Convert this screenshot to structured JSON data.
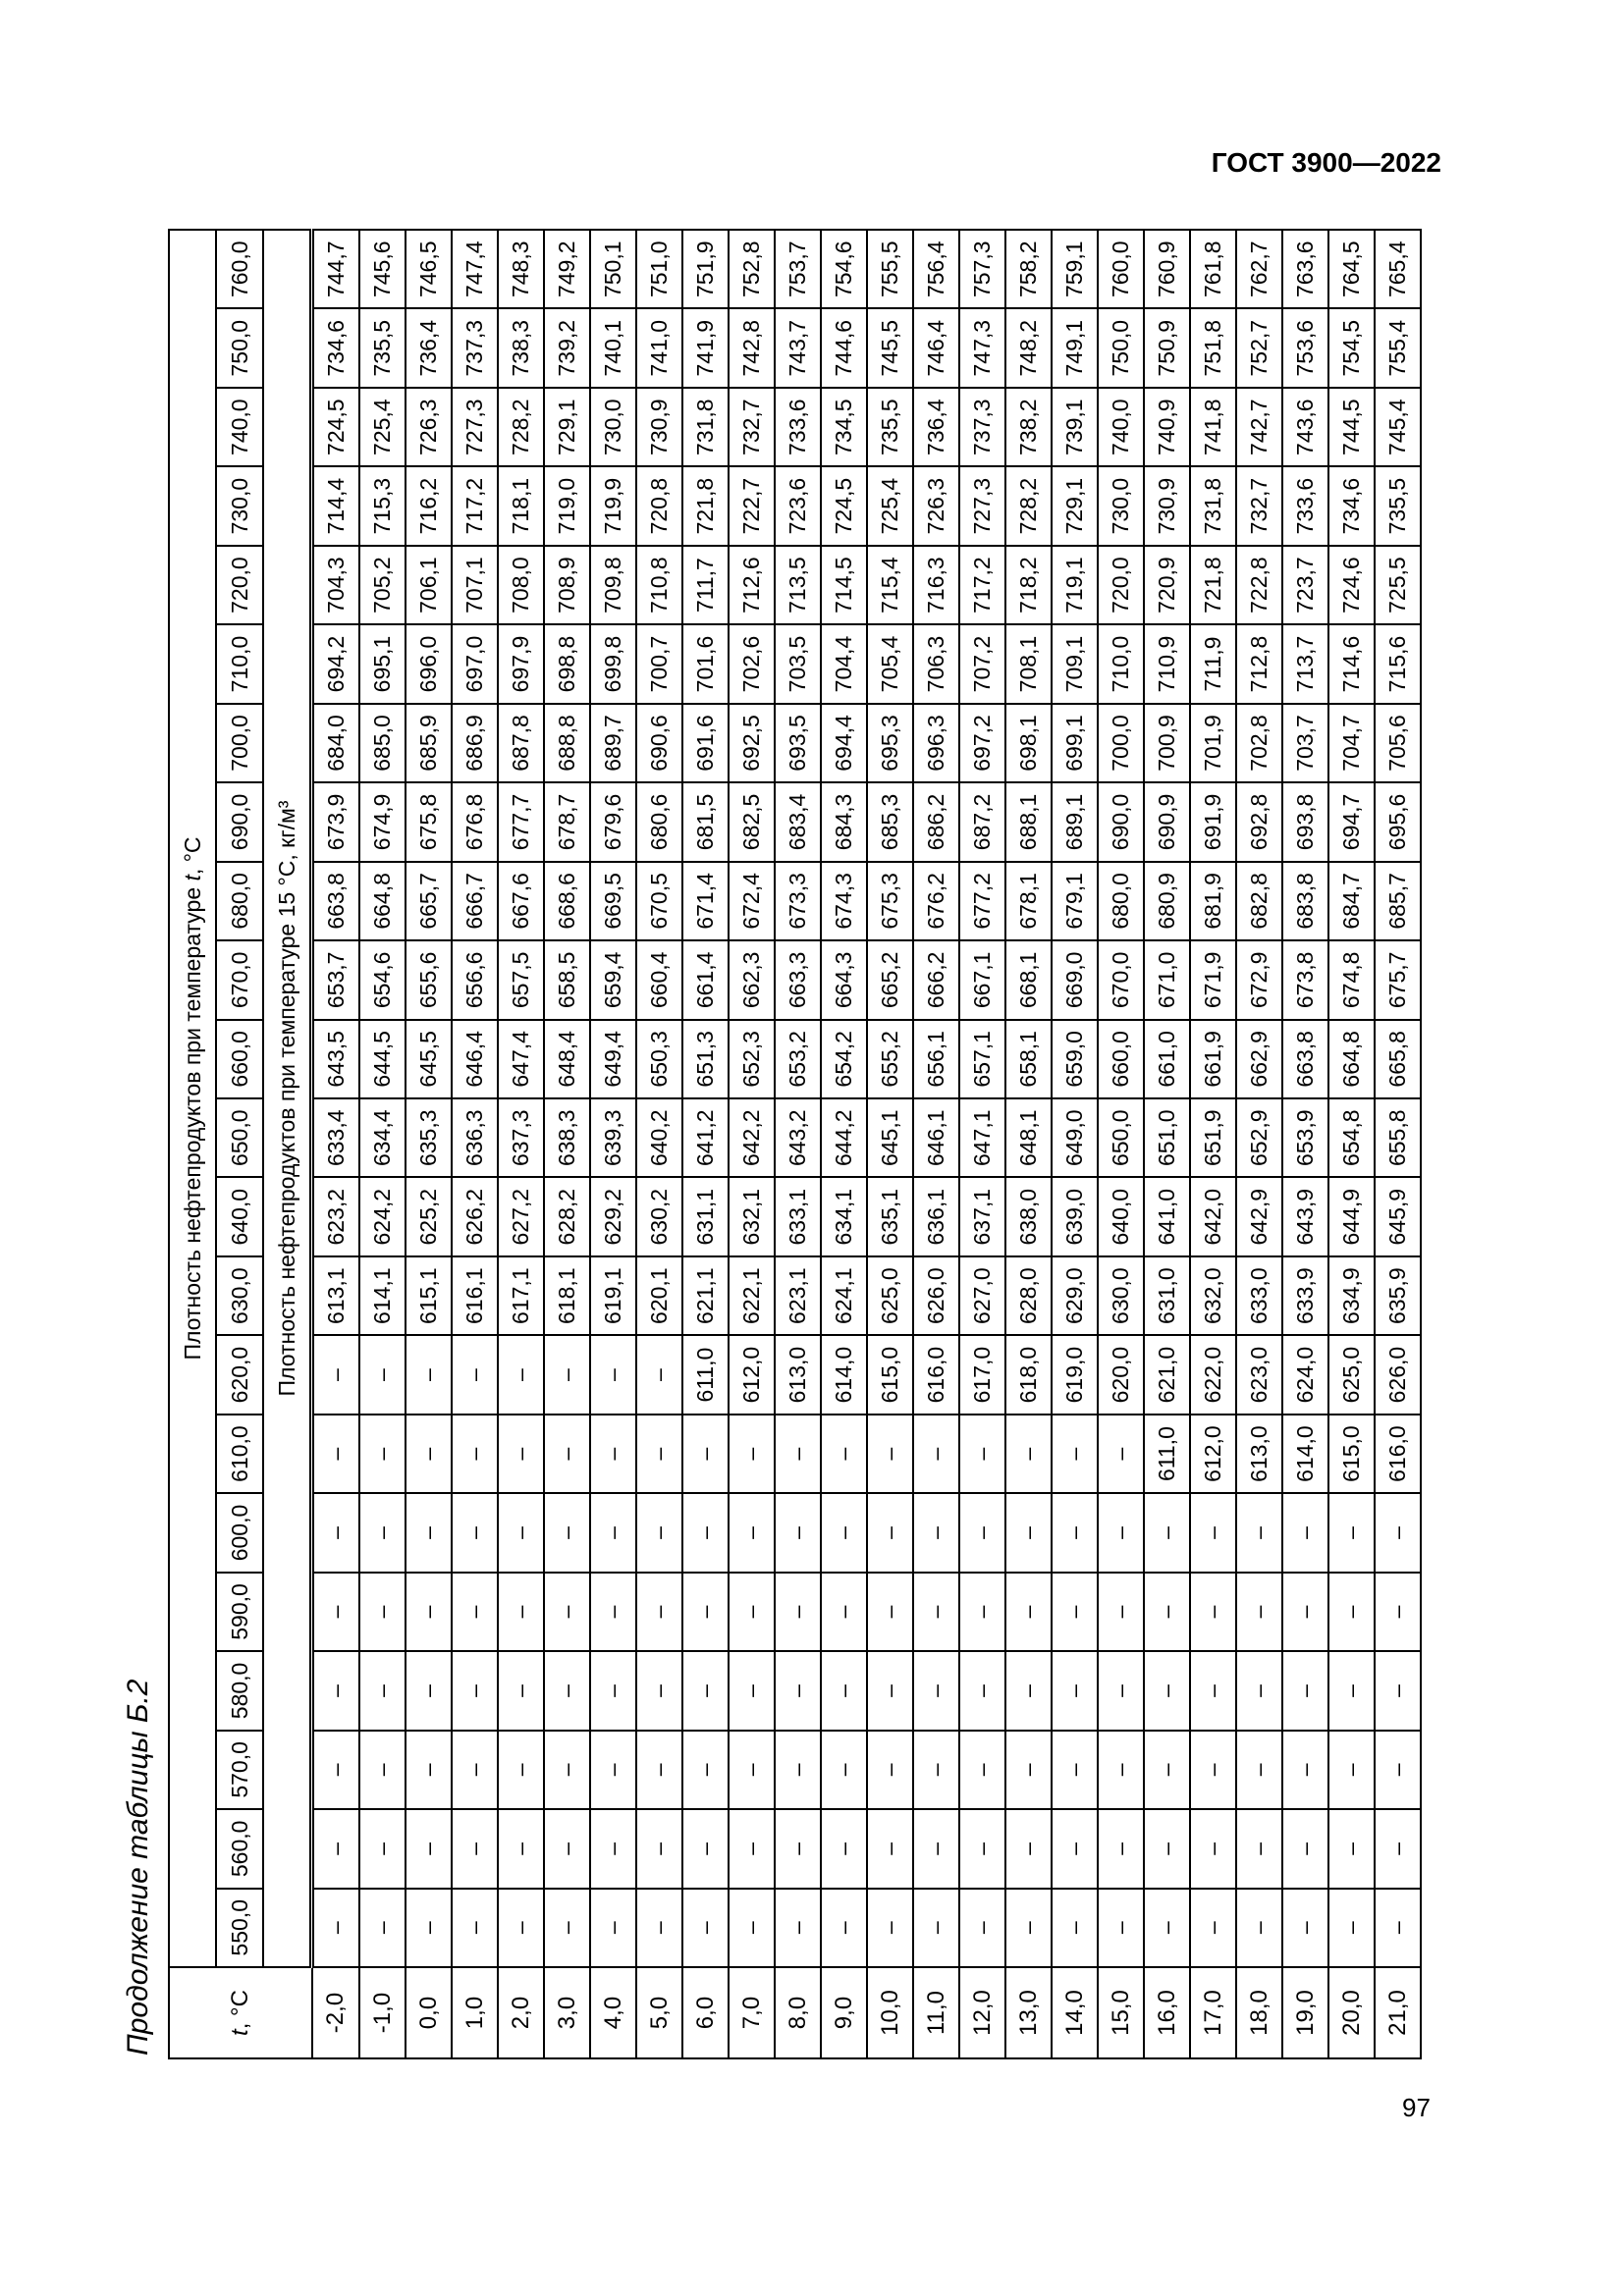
{
  "header": {
    "doc_id": "ГОСТ 3900—2022"
  },
  "footer": {
    "page_number": "97"
  },
  "table": {
    "caption": "Продолжение таблицы Б.2",
    "t_header": {
      "symbol": "t",
      "unit": ", °C"
    },
    "group_header": {
      "prefix": "Плотность нефтепродуктов при температуре ",
      "symbol": "t",
      "suffix": ", °C"
    },
    "sub_header": "Плотность нефтепродуктов при температуре 15 °C, кг/м³",
    "columns": [
      "550,0",
      "560,0",
      "570,0",
      "580,0",
      "590,0",
      "600,0",
      "610,0",
      "620,0",
      "630,0",
      "640,0",
      "650,0",
      "660,0",
      "670,0",
      "680,0",
      "690,0",
      "700,0",
      "710,0",
      "720,0",
      "730,0",
      "740,0",
      "750,0",
      "760,0"
    ],
    "rows": [
      {
        "t": "-2,0",
        "values": [
          "–",
          "–",
          "–",
          "–",
          "–",
          "–",
          "–",
          "–",
          "613,1",
          "623,2",
          "633,4",
          "643,5",
          "653,7",
          "663,8",
          "673,9",
          "684,0",
          "694,2",
          "704,3",
          "714,4",
          "724,5",
          "734,6",
          "744,7"
        ]
      },
      {
        "t": "-1,0",
        "values": [
          "–",
          "–",
          "–",
          "–",
          "–",
          "–",
          "–",
          "–",
          "614,1",
          "624,2",
          "634,4",
          "644,5",
          "654,6",
          "664,8",
          "674,9",
          "685,0",
          "695,1",
          "705,2",
          "715,3",
          "725,4",
          "735,5",
          "745,6"
        ]
      },
      {
        "t": "0,0",
        "values": [
          "–",
          "–",
          "–",
          "–",
          "–",
          "–",
          "–",
          "–",
          "615,1",
          "625,2",
          "635,3",
          "645,5",
          "655,6",
          "665,7",
          "675,8",
          "685,9",
          "696,0",
          "706,1",
          "716,2",
          "726,3",
          "736,4",
          "746,5"
        ]
      },
      {
        "t": "1,0",
        "values": [
          "–",
          "–",
          "–",
          "–",
          "–",
          "–",
          "–",
          "–",
          "616,1",
          "626,2",
          "636,3",
          "646,4",
          "656,6",
          "666,7",
          "676,8",
          "686,9",
          "697,0",
          "707,1",
          "717,2",
          "727,3",
          "737,3",
          "747,4"
        ]
      },
      {
        "t": "2,0",
        "values": [
          "–",
          "–",
          "–",
          "–",
          "–",
          "–",
          "–",
          "–",
          "617,1",
          "627,2",
          "637,3",
          "647,4",
          "657,5",
          "667,6",
          "677,7",
          "687,8",
          "697,9",
          "708,0",
          "718,1",
          "728,2",
          "738,3",
          "748,3"
        ]
      },
      {
        "t": "3,0",
        "values": [
          "–",
          "–",
          "–",
          "–",
          "–",
          "–",
          "–",
          "–",
          "618,1",
          "628,2",
          "638,3",
          "648,4",
          "658,5",
          "668,6",
          "678,7",
          "688,8",
          "698,8",
          "708,9",
          "719,0",
          "729,1",
          "739,2",
          "749,2"
        ]
      },
      {
        "t": "4,0",
        "values": [
          "–",
          "–",
          "–",
          "–",
          "–",
          "–",
          "–",
          "–",
          "619,1",
          "629,2",
          "639,3",
          "649,4",
          "659,4",
          "669,5",
          "679,6",
          "689,7",
          "699,8",
          "709,8",
          "719,9",
          "730,0",
          "740,1",
          "750,1"
        ]
      },
      {
        "t": "5,0",
        "values": [
          "–",
          "–",
          "–",
          "–",
          "–",
          "–",
          "–",
          "–",
          "620,1",
          "630,2",
          "640,2",
          "650,3",
          "660,4",
          "670,5",
          "680,6",
          "690,6",
          "700,7",
          "710,8",
          "720,8",
          "730,9",
          "741,0",
          "751,0"
        ]
      },
      {
        "t": "6,0",
        "values": [
          "–",
          "–",
          "–",
          "–",
          "–",
          "–",
          "–",
          "611,0",
          "621,1",
          "631,1",
          "641,2",
          "651,3",
          "661,4",
          "671,4",
          "681,5",
          "691,6",
          "701,6",
          "711,7",
          "721,8",
          "731,8",
          "741,9",
          "751,9"
        ]
      },
      {
        "t": "7,0",
        "values": [
          "–",
          "–",
          "–",
          "–",
          "–",
          "–",
          "–",
          "612,0",
          "622,1",
          "632,1",
          "642,2",
          "652,3",
          "662,3",
          "672,4",
          "682,5",
          "692,5",
          "702,6",
          "712,6",
          "722,7",
          "732,7",
          "742,8",
          "752,8"
        ]
      },
      {
        "t": "8,0",
        "values": [
          "–",
          "–",
          "–",
          "–",
          "–",
          "–",
          "–",
          "613,0",
          "623,1",
          "633,1",
          "643,2",
          "653,2",
          "663,3",
          "673,3",
          "683,4",
          "693,5",
          "703,5",
          "713,5",
          "723,6",
          "733,6",
          "743,7",
          "753,7"
        ]
      },
      {
        "t": "9,0",
        "values": [
          "–",
          "–",
          "–",
          "–",
          "–",
          "–",
          "–",
          "614,0",
          "624,1",
          "634,1",
          "644,2",
          "654,2",
          "664,3",
          "674,3",
          "684,3",
          "694,4",
          "704,4",
          "714,5",
          "724,5",
          "734,5",
          "744,6",
          "754,6"
        ]
      },
      {
        "t": "10,0",
        "values": [
          "–",
          "–",
          "–",
          "–",
          "–",
          "–",
          "–",
          "615,0",
          "625,0",
          "635,1",
          "645,1",
          "655,2",
          "665,2",
          "675,3",
          "685,3",
          "695,3",
          "705,4",
          "715,4",
          "725,4",
          "735,5",
          "745,5",
          "755,5"
        ]
      },
      {
        "t": "11,0",
        "values": [
          "–",
          "–",
          "–",
          "–",
          "–",
          "–",
          "–",
          "616,0",
          "626,0",
          "636,1",
          "646,1",
          "656,1",
          "666,2",
          "676,2",
          "686,2",
          "696,3",
          "706,3",
          "716,3",
          "726,3",
          "736,4",
          "746,4",
          "756,4"
        ]
      },
      {
        "t": "12,0",
        "values": [
          "–",
          "–",
          "–",
          "–",
          "–",
          "–",
          "–",
          "617,0",
          "627,0",
          "637,1",
          "647,1",
          "657,1",
          "667,1",
          "677,2",
          "687,2",
          "697,2",
          "707,2",
          "717,2",
          "727,3",
          "737,3",
          "747,3",
          "757,3"
        ]
      },
      {
        "t": "13,0",
        "values": [
          "–",
          "–",
          "–",
          "–",
          "–",
          "–",
          "–",
          "618,0",
          "628,0",
          "638,0",
          "648,1",
          "658,1",
          "668,1",
          "678,1",
          "688,1",
          "698,1",
          "708,1",
          "718,2",
          "728,2",
          "738,2",
          "748,2",
          "758,2"
        ]
      },
      {
        "t": "14,0",
        "values": [
          "–",
          "–",
          "–",
          "–",
          "–",
          "–",
          "–",
          "619,0",
          "629,0",
          "639,0",
          "649,0",
          "659,0",
          "669,0",
          "679,1",
          "689,1",
          "699,1",
          "709,1",
          "719,1",
          "729,1",
          "739,1",
          "749,1",
          "759,1"
        ]
      },
      {
        "t": "15,0",
        "values": [
          "–",
          "–",
          "–",
          "–",
          "–",
          "–",
          "–",
          "620,0",
          "630,0",
          "640,0",
          "650,0",
          "660,0",
          "670,0",
          "680,0",
          "690,0",
          "700,0",
          "710,0",
          "720,0",
          "730,0",
          "740,0",
          "750,0",
          "760,0"
        ]
      },
      {
        "t": "16,0",
        "values": [
          "–",
          "–",
          "–",
          "–",
          "–",
          "–",
          "611,0",
          "621,0",
          "631,0",
          "641,0",
          "651,0",
          "661,0",
          "671,0",
          "680,9",
          "690,9",
          "700,9",
          "710,9",
          "720,9",
          "730,9",
          "740,9",
          "750,9",
          "760,9"
        ]
      },
      {
        "t": "17,0",
        "values": [
          "–",
          "–",
          "–",
          "–",
          "–",
          "–",
          "612,0",
          "622,0",
          "632,0",
          "642,0",
          "651,9",
          "661,9",
          "671,9",
          "681,9",
          "691,9",
          "701,9",
          "711,9",
          "721,8",
          "731,8",
          "741,8",
          "751,8",
          "761,8"
        ]
      },
      {
        "t": "18,0",
        "values": [
          "–",
          "–",
          "–",
          "–",
          "–",
          "–",
          "613,0",
          "623,0",
          "633,0",
          "642,9",
          "652,9",
          "662,9",
          "672,9",
          "682,8",
          "692,8",
          "702,8",
          "712,8",
          "722,8",
          "732,7",
          "742,7",
          "752,7",
          "762,7"
        ]
      },
      {
        "t": "19,0",
        "values": [
          "–",
          "–",
          "–",
          "–",
          "–",
          "–",
          "614,0",
          "624,0",
          "633,9",
          "643,9",
          "653,9",
          "663,8",
          "673,8",
          "683,8",
          "693,8",
          "703,7",
          "713,7",
          "723,7",
          "733,6",
          "743,6",
          "753,6",
          "763,6"
        ]
      },
      {
        "t": "20,0",
        "values": [
          "–",
          "–",
          "–",
          "–",
          "–",
          "–",
          "615,0",
          "625,0",
          "634,9",
          "644,9",
          "654,8",
          "664,8",
          "674,8",
          "684,7",
          "694,7",
          "704,7",
          "714,6",
          "724,6",
          "734,6",
          "744,5",
          "754,5",
          "764,5"
        ]
      },
      {
        "t": "21,0",
        "values": [
          "–",
          "–",
          "–",
          "–",
          "–",
          "–",
          "616,0",
          "626,0",
          "635,9",
          "645,9",
          "655,8",
          "665,8",
          "675,7",
          "685,7",
          "695,6",
          "705,6",
          "715,6",
          "725,5",
          "735,5",
          "745,4",
          "755,4",
          "765,4"
        ]
      }
    ]
  }
}
